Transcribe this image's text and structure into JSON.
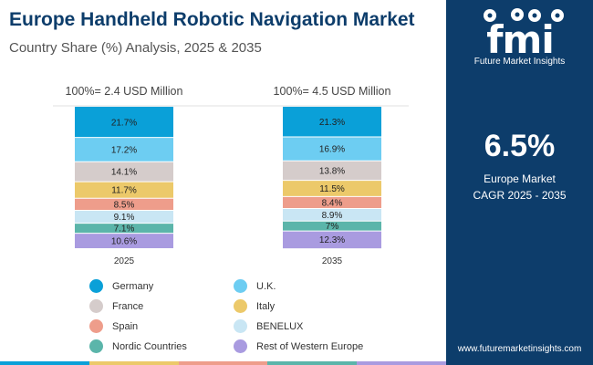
{
  "header": {
    "title": "Europe Handheld Robotic Navigation Market",
    "subtitle": "Country Share (%) Analysis, 2025 & 2035"
  },
  "chart_data": {
    "type": "stacked-bar",
    "title": "Europe Handheld Robotic Navigation Market",
    "subtitle": "Country Share (%) Analysis, 2025 & 2035",
    "categories": [
      "2025",
      "2035"
    ],
    "totals": [
      "100%=  2.4 USD Million",
      "100%=  4.5 USD Million"
    ],
    "series": [
      {
        "name": "Germany",
        "color": "#0aa0d8",
        "values": [
          21.7,
          21.3
        ],
        "labels": [
          "21.7%",
          "21.3%"
        ]
      },
      {
        "name": "U.K.",
        "color": "#6dcdf2",
        "values": [
          17.2,
          16.9
        ],
        "labels": [
          "17.2%",
          "16.9%"
        ]
      },
      {
        "name": "France",
        "color": "#d5cccb",
        "values": [
          14.1,
          13.8
        ],
        "labels": [
          "14.1%",
          "13.8%"
        ]
      },
      {
        "name": "Italy",
        "color": "#ecc96a",
        "values": [
          11.7,
          11.5
        ],
        "labels": [
          "11.7%",
          "11.5%"
        ]
      },
      {
        "name": "Spain",
        "color": "#ee9d8b",
        "values": [
          8.5,
          8.4
        ],
        "labels": [
          "8.5%",
          "8.4%"
        ]
      },
      {
        "name": "BENELUX",
        "color": "#c9e6f4",
        "values": [
          9.1,
          8.9
        ],
        "labels": [
          "9.1%",
          "8.9%"
        ]
      },
      {
        "name": "Nordic Countries",
        "color": "#5bb5aa",
        "values": [
          7.1,
          7.0
        ],
        "labels": [
          "7.1%",
          "7%"
        ]
      },
      {
        "name": "Rest of Western Europe",
        "color": "#a99be0",
        "values": [
          10.6,
          12.3
        ],
        "labels": [
          "10.6%",
          "12.3%"
        ]
      }
    ],
    "ylim": [
      0,
      100
    ],
    "grid": false,
    "legend": "bottom"
  },
  "panel": {
    "logo_text": "fmi",
    "brand": "Future Market Insights",
    "cagr_value": "6.5%",
    "cagr_line1": "Europe Market",
    "cagr_line2": "CAGR 2025 - 2035",
    "website": "www.futuremarketinsights.com"
  },
  "colors": {
    "navy": "#0d3d6b",
    "bottom_bar": [
      "#0aa0d8",
      "#ecc96a",
      "#ee9d8b",
      "#5bb5aa",
      "#a99be0"
    ]
  }
}
